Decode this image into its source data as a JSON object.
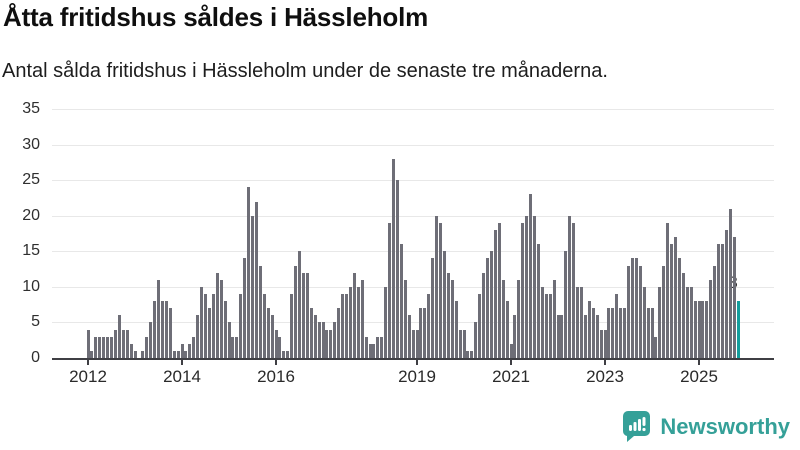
{
  "header": {
    "title": "Åtta fritidshus såldes i Hässleholm",
    "subtitle": "Antal sålda fritidshus i Hässleholm under de senaste tre månaderna."
  },
  "chart_data": {
    "type": "bar",
    "title": "Åtta fritidshus såldes i Hässleholm",
    "subtitle": "Antal sålda fritidshus i Hässleholm under de senaste tre månaderna.",
    "start_year": 2012,
    "months_per_bar": 1,
    "values": [
      4,
      1,
      3,
      3,
      3,
      3,
      3,
      4,
      6,
      4,
      4,
      2,
      1,
      0,
      1,
      3,
      5,
      8,
      11,
      8,
      8,
      7,
      1,
      1,
      2,
      1,
      2,
      3,
      6,
      10,
      9,
      7,
      9,
      12,
      11,
      8,
      5,
      3,
      3,
      9,
      14,
      24,
      20,
      22,
      13,
      9,
      7,
      6,
      4,
      3,
      1,
      1,
      9,
      13,
      15,
      12,
      12,
      7,
      6,
      5,
      5,
      4,
      4,
      5,
      7,
      9,
      9,
      10,
      12,
      10,
      11,
      3,
      2,
      2,
      3,
      3,
      10,
      19,
      28,
      25,
      16,
      11,
      6,
      4,
      4,
      7,
      7,
      9,
      14,
      20,
      19,
      15,
      12,
      11,
      8,
      4,
      4,
      1,
      1,
      5,
      9,
      12,
      14,
      15,
      18,
      19,
      11,
      8,
      2,
      6,
      11,
      19,
      20,
      23,
      20,
      16,
      10,
      9,
      9,
      11,
      6,
      6,
      15,
      20,
      19,
      10,
      10,
      6,
      8,
      7,
      6,
      4,
      4,
      7,
      7,
      9,
      7,
      7,
      13,
      14,
      14,
      13,
      10,
      7,
      7,
      3,
      10,
      13,
      19,
      16,
      17,
      14,
      12,
      10,
      10,
      8,
      8,
      8,
      8,
      11,
      13,
      16,
      16,
      18,
      21,
      17,
      8
    ],
    "ylim": [
      0,
      35
    ],
    "y_ticks": [
      0,
      5,
      10,
      15,
      20,
      25,
      30,
      35
    ],
    "x_ticks": [
      2012,
      2014,
      2016,
      2019,
      2021,
      2023,
      2025
    ],
    "grid": true,
    "bar_color": "#6e6e77",
    "highlight_color": "#149e9d",
    "highlight_last_bar": true,
    "highlight_value_label": "8"
  },
  "branding": {
    "logo_text": "Newsworthy",
    "logo_color": "#35a098",
    "icon": "bar-chart-speech-bubble-icon"
  }
}
